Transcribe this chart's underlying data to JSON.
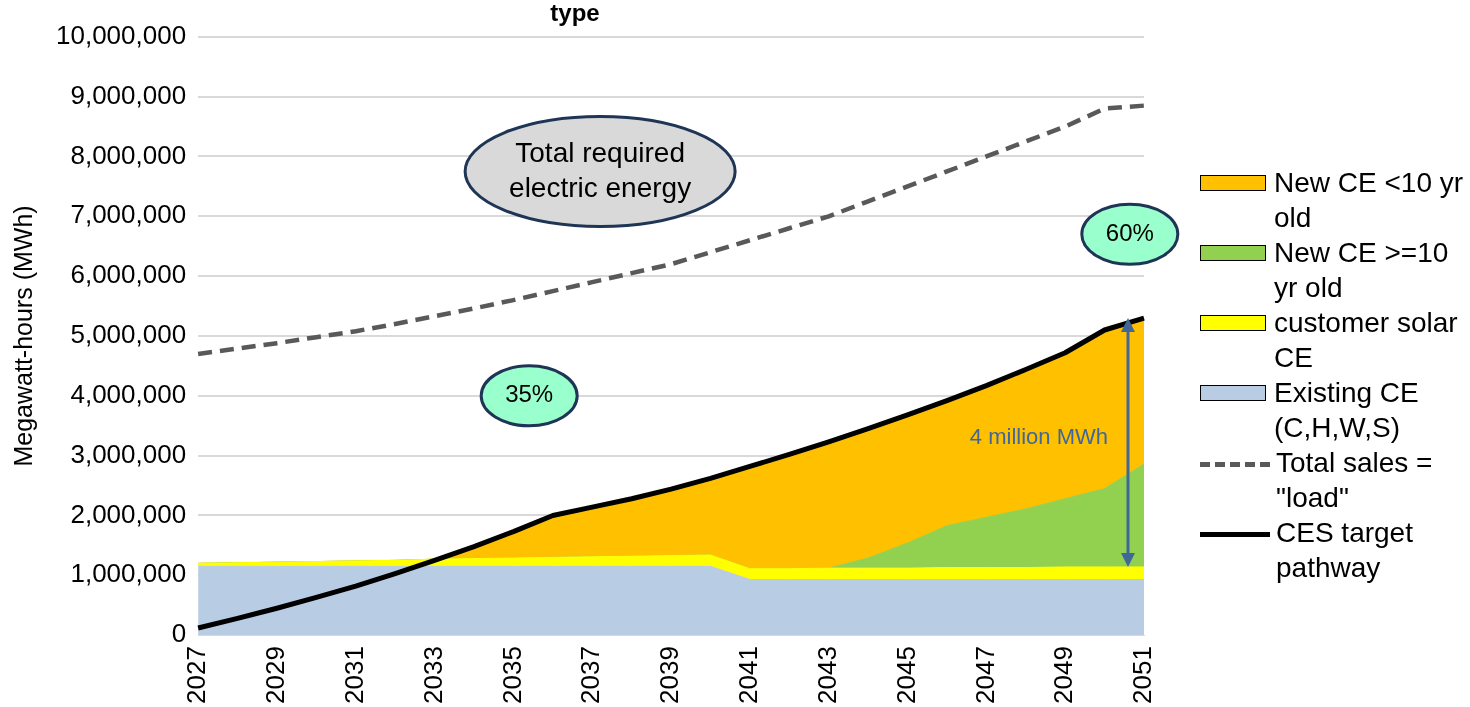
{
  "chart_data": {
    "type": "area",
    "title": "type",
    "ylabel": "Megawatt-hours (MWh)",
    "stacked": true,
    "grid": "y",
    "legend": "right",
    "marker": "none",
    "categories": [
      "2027",
      null,
      "2029",
      null,
      "2031",
      null,
      "2033",
      null,
      "2035",
      null,
      "2037",
      null,
      "2039",
      null,
      "2041",
      null,
      "2043",
      null,
      "2045",
      null,
      "2047",
      null,
      "2049",
      null,
      "2051"
    ],
    "ylim": [
      0,
      10000000
    ],
    "yticks": [
      0,
      {
        "value": 1000000,
        "label": "1,000,000"
      },
      {
        "value": 2000000,
        "label": "2,000,000"
      },
      {
        "value": 3000000,
        "label": "3,000,000"
      },
      {
        "value": 4000000,
        "label": "4,000,000"
      },
      {
        "value": 5000000,
        "label": "5,000,000"
      },
      {
        "value": 6000000,
        "label": "6,000,000"
      },
      {
        "value": 7000000,
        "label": "7,000,000"
      },
      {
        "value": 8000000,
        "label": "8,000,000"
      },
      {
        "value": 9000000,
        "label": "9,000,000"
      },
      {
        "value": 10000000,
        "label": "10,000,000"
      }
    ],
    "series": [
      {
        "name": "Existing CE (C,H,W,S)",
        "type": "area",
        "color": "#b8cce4",
        "values": [
          1150000,
          1150000,
          1150000,
          1150000,
          1150000,
          1150000,
          1150000,
          1150000,
          1150000,
          1150000,
          1150000,
          1150000,
          1150000,
          1150000,
          930000,
          930000,
          930000,
          930000,
          930000,
          930000,
          930000,
          930000,
          930000,
          930000,
          930000
        ]
      },
      {
        "name": "customer solar CE",
        "type": "area",
        "color": "#ffff00",
        "values": [
          50000,
          60000,
          70000,
          80000,
          90000,
          100000,
          120000,
          130000,
          140000,
          150000,
          160000,
          170000,
          180000,
          190000,
          180000,
          180000,
          190000,
          190000,
          190000,
          200000,
          200000,
          200000,
          210000,
          210000,
          210000
        ]
      },
      {
        "name": "New CE >=10 yr old",
        "type": "area",
        "color": "#92d050",
        "values": [
          0,
          0,
          0,
          0,
          0,
          0,
          0,
          0,
          0,
          0,
          0,
          0,
          0,
          0,
          0,
          0,
          0,
          170000,
          420000,
          700000,
          840000,
          980000,
          1140000,
          1310000,
          1720000
        ]
      },
      {
        "name": "New CE <10 yr old",
        "type": "area",
        "color": "#ffc000",
        "values": [
          0,
          0,
          0,
          0,
          0,
          0,
          0,
          200000,
          440000,
          700000,
          830000,
          960000,
          1110000,
          1280000,
          1710000,
          1910000,
          2110000,
          2160000,
          2140000,
          2090000,
          2200000,
          2330000,
          2440000,
          2650000,
          2440000
        ]
      },
      {
        "name": "Total sales = \"load\"",
        "type": "line",
        "line_style": "dashed",
        "color": "#595959",
        "values": [
          4700000,
          4790000,
          4880000,
          4980000,
          5080000,
          5200000,
          5330000,
          5460000,
          5600000,
          5750000,
          5900000,
          6050000,
          6200000,
          6400000,
          6600000,
          6800000,
          7000000,
          7250000,
          7500000,
          7750000,
          8000000,
          8250000,
          8500000,
          8800000,
          8850000
        ]
      },
      {
        "name": "CES target pathway",
        "type": "line",
        "line_style": "solid",
        "color": "#000000",
        "values": [
          120000,
          280000,
          450000,
          630000,
          820000,
          1030000,
          1250000,
          1480000,
          1730000,
          2000000,
          2140000,
          2280000,
          2440000,
          2620000,
          2820000,
          3020000,
          3230000,
          3450000,
          3680000,
          3920000,
          4170000,
          4440000,
          4720000,
          5100000,
          5300000
        ]
      }
    ],
    "annotations": [
      "Total required electric energy",
      "35%",
      "60%",
      {
        "text": "4 million MWh",
        "x": "2051",
        "y": 3300000
      }
    ]
  }
}
